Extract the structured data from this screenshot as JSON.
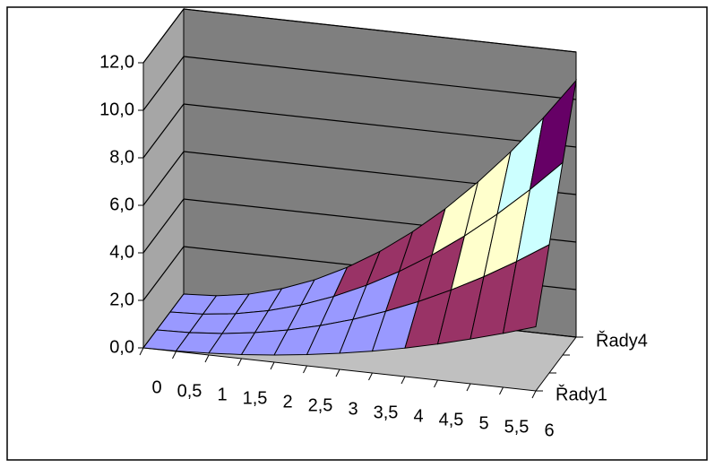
{
  "chart_data": {
    "type": "surface",
    "categories": [
      "0",
      "0,5",
      "1",
      "1,5",
      "2",
      "2,5",
      "3",
      "3,5",
      "4",
      "4,5",
      "5",
      "5,5",
      "6"
    ],
    "series": [
      {
        "name": "Řady1",
        "values": [
          0,
          0.02,
          0.08,
          0.17,
          0.3,
          0.47,
          0.68,
          0.92,
          1.2,
          1.52,
          1.88,
          2.27,
          2.7
        ]
      },
      {
        "name": null,
        "values": [
          0,
          0.04,
          0.15,
          0.34,
          0.6,
          0.94,
          1.35,
          1.84,
          2.4,
          3.04,
          3.75,
          4.54,
          5.4
        ]
      },
      {
        "name": null,
        "values": [
          0,
          0.06,
          0.23,
          0.51,
          0.9,
          1.41,
          2.03,
          2.76,
          3.6,
          4.56,
          5.63,
          6.81,
          8.1
        ]
      },
      {
        "name": "Řady4",
        "values": [
          0,
          0.08,
          0.3,
          0.68,
          1.2,
          1.88,
          2.7,
          3.68,
          4.8,
          6.08,
          7.5,
          9.08,
          10.8
        ]
      }
    ],
    "ylim": [
      0,
      12
    ],
    "yticks": [
      {
        "value": 0,
        "label": "0,0"
      },
      {
        "value": 2,
        "label": "2,0"
      },
      {
        "value": 4,
        "label": "4,0"
      },
      {
        "value": 6,
        "label": "6,0"
      },
      {
        "value": 8,
        "label": "8,0"
      },
      {
        "value": 10,
        "label": "10,0"
      },
      {
        "value": 12,
        "label": "12,0"
      }
    ],
    "band_colors": [
      "#9999ff",
      "#993366",
      "#ffffcc",
      "#ccffff",
      "#660066",
      "#008080"
    ],
    "grid": true
  }
}
